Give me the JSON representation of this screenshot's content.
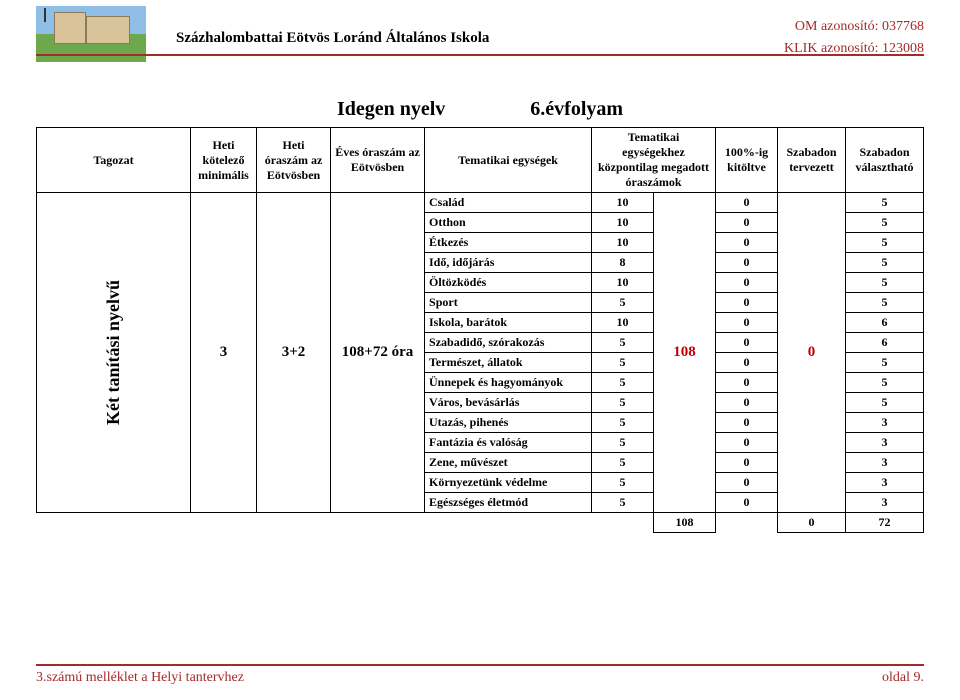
{
  "header": {
    "school": "Százhalombattai Eötvös Loránd Általános Iskola",
    "om_id": "OM azonosító: 037768",
    "klik_id": "KLIK azonosító: 123008"
  },
  "title": {
    "subject": "Idegen nyelv",
    "grade": "6.évfolyam"
  },
  "columns": {
    "c0": "Tagozat",
    "c1": "Heti kötelező minimális",
    "c2": "Heti óraszám az Eötvösben",
    "c3": "Éves óraszám az Eötvösben",
    "c4": "Tematikai egységek",
    "c5": "Tematikai egységekhez központilag megadott óraszámok",
    "c6": "100%-ig kitöltve",
    "c7": "Szabadon tervezett",
    "c8": "Szabadon választható"
  },
  "left": {
    "tagozat": "Két tanítási nyelvű",
    "heti_min": "3",
    "heti_eotv": "3+2",
    "eves": "108+72 óra"
  },
  "rows": [
    {
      "name": "Család",
      "h": "10",
      "fill": "0",
      "free": "5"
    },
    {
      "name": "Otthon",
      "h": "10",
      "fill": "0",
      "free": "5"
    },
    {
      "name": "Étkezés",
      "h": "10",
      "fill": "0",
      "free": "5"
    },
    {
      "name": "Idő, időjárás",
      "h": "8",
      "fill": "0",
      "free": "5"
    },
    {
      "name": "Öltözködés",
      "h": "10",
      "fill": "0",
      "free": "5"
    },
    {
      "name": "Sport",
      "h": "5",
      "fill": "0",
      "free": "5"
    },
    {
      "name": "Iskola, barátok",
      "h": "10",
      "fill": "0",
      "free": "6"
    },
    {
      "name": "Szabadidő, szórakozás",
      "h": "5",
      "fill": "0",
      "free": "6"
    },
    {
      "name": "Természet, állatok",
      "h": "5",
      "fill": "0",
      "free": "5"
    },
    {
      "name": "Ünnepek és hagyományok",
      "h": "5",
      "fill": "0",
      "free": "5"
    },
    {
      "name": "Város, bevásárlás",
      "h": "5",
      "fill": "0",
      "free": "5"
    },
    {
      "name": "Utazás, pihenés",
      "h": "5",
      "fill": "0",
      "free": "3"
    },
    {
      "name": "Fantázia és valóság",
      "h": "5",
      "fill": "0",
      "free": "3"
    },
    {
      "name": "Zene, művészet",
      "h": "5",
      "fill": "0",
      "free": "3"
    },
    {
      "name": "Környezetünk védelme",
      "h": "5",
      "fill": "0",
      "free": "3"
    },
    {
      "name": "Egészséges életmód",
      "h": "5",
      "fill": "0",
      "free": "3"
    }
  ],
  "merged": {
    "central": "108",
    "planned": "0"
  },
  "totals": {
    "central": "108",
    "planned": "0",
    "free": "72"
  },
  "footer": {
    "left": "3.számú melléklet a Helyi tantervhez",
    "right": "oldal 9."
  },
  "colors": {
    "accent": "#a52a2a",
    "red": "#c00000"
  }
}
